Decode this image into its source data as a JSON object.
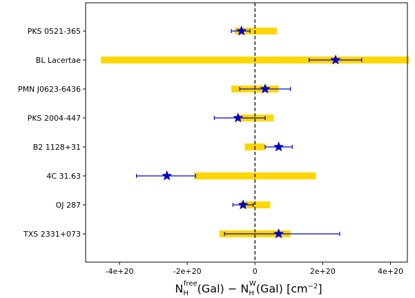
{
  "chart_data": {
    "type": "scatter",
    "title": "",
    "xlabel": "N_H^free(Gal) − N_H^W(Gal)  [cm^−2]",
    "xlabel_parts": {
      "n1": "N",
      "sub1": "H",
      "sup1": "free",
      "mid": "(Gal) − N",
      "sub2": "H",
      "sup2": "W",
      "tail": "(Gal)  [cm",
      "exp": "−2",
      "close": "]"
    },
    "xlim": [
      -5e+20,
      4.5e+20
    ],
    "xticks": [
      {
        "value": -4e+20,
        "label": "-4e+20"
      },
      {
        "value": -2e+20,
        "label": "-2e+20"
      },
      {
        "value": 0,
        "label": "0"
      },
      {
        "value": 2e+20,
        "label": "2e+20"
      },
      {
        "value": 4e+20,
        "label": "4e+20"
      }
    ],
    "reference_line": {
      "x": 0,
      "style": "dashed",
      "color": "#000000"
    },
    "band_color": "#FFD700",
    "marker_color": "#0000CC",
    "marker": "star",
    "sources": [
      {
        "name": "PKS 0521-365",
        "value": -4e+19,
        "err_low": -7e+19,
        "err_high": -1.5e+19,
        "band": [
          -6e+19,
          6.5e+19
        ]
      },
      {
        "name": "BL Lacertae",
        "value": 2.38e+20,
        "err_low": 1.6e+20,
        "err_high": 3.15e+20,
        "band": [
          -4.55e+20,
          4.55e+20
        ]
      },
      {
        "name": "PMN J0623-6436",
        "value": 3e+19,
        "err_low": -4.5e+19,
        "err_high": 1.05e+20,
        "band": [
          -7e+19,
          7e+19
        ]
      },
      {
        "name": "PKS 2004-447",
        "value": -5e+19,
        "err_low": -1.2e+20,
        "err_high": 3e+19,
        "band": [
          -5e+19,
          5.5e+19
        ]
      },
      {
        "name": "B2 1128+31",
        "value": 7e+19,
        "err_low": 3e+19,
        "err_high": 1.1e+20,
        "band": [
          -3e+19,
          3e+19
        ]
      },
      {
        "name": "4C 31.63",
        "value": -2.6e+20,
        "err_low": -3.5e+20,
        "err_high": -1.75e+20,
        "band": [
          -1.8e+20,
          1.8e+20
        ]
      },
      {
        "name": "OJ 287",
        "value": -3.5e+19,
        "err_low": -6.5e+19,
        "err_high": -5e+18,
        "band": [
          -4.5e+19,
          4.5e+19
        ]
      },
      {
        "name": "TXS 2331+073",
        "value": 7e+19,
        "err_low": -9e+19,
        "err_high": 2.5e+20,
        "band": [
          -1.05e+20,
          1.05e+20
        ]
      }
    ]
  }
}
